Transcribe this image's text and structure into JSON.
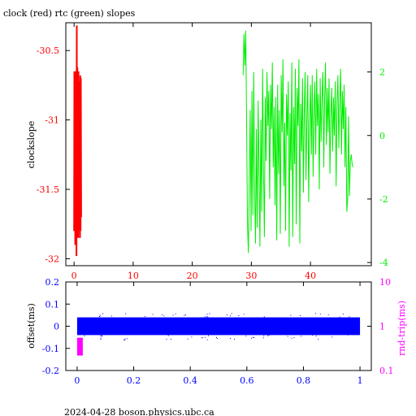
{
  "title": "clock (red) rtc (green) slopes",
  "footer": "2024-04-28  boson.physics.ubc.ca",
  "colors": {
    "clock": "#ff0000",
    "rtc": "#00ee00",
    "offset": "#0000ff",
    "rndtrip": "#ff00ff",
    "axis": "#000000"
  },
  "chart_data": [
    {
      "type": "line",
      "ylabel": "clockslope",
      "left_ticks": [
        "-30.5",
        "-31",
        "-31.5",
        "-32"
      ],
      "left_ylim": [
        -32.05,
        -30.3
      ],
      "right_ticks": [
        "2",
        "0",
        "-2",
        "-4"
      ],
      "right_ylim": [
        -4.1,
        3.55
      ],
      "x_ticks": [
        "0",
        "10",
        "20",
        "30",
        "40"
      ],
      "xlim": [
        -1.4,
        50.3
      ],
      "grid": false,
      "series": [
        {
          "axis": "left",
          "x": [
            0.0,
            0.05,
            0.1,
            0.15,
            0.2,
            0.25,
            0.3,
            0.35,
            0.4,
            0.45,
            0.5,
            0.55,
            0.6,
            0.65,
            0.7,
            0.75,
            0.8,
            0.85,
            0.9,
            0.95,
            1.0,
            1.05,
            1.1,
            1.15,
            1.2
          ],
          "y": [
            -31.8,
            -30.65,
            -31.75,
            -30.7,
            -31.9,
            -30.65,
            -31.7,
            -30.7,
            -31.98,
            -30.32,
            -31.85,
            -30.62,
            -31.75,
            -30.7,
            -31.85,
            -30.65,
            -31.7,
            -30.72,
            -31.8,
            -30.75,
            -31.85,
            -30.68,
            -31.8,
            -30.7,
            -31.7
          ]
        },
        {
          "axis": "right",
          "x": [
            28.6,
            28.75,
            28.9,
            29.05,
            29.2,
            29.35,
            29.5,
            29.65,
            29.8,
            29.95,
            30.1,
            30.25,
            30.4,
            30.55,
            30.7,
            30.85,
            31.0,
            31.15,
            31.3,
            31.45,
            31.6,
            31.75,
            31.9,
            32.05,
            32.2,
            32.35,
            32.5,
            32.65,
            32.8,
            32.95,
            33.1,
            33.25,
            33.4,
            33.55,
            33.7,
            33.85,
            34.0,
            34.15,
            34.3,
            34.45,
            34.6,
            34.75,
            34.9,
            35.05,
            35.2,
            35.35,
            35.5,
            35.65,
            35.8,
            35.95,
            36.1,
            36.25,
            36.4,
            36.55,
            36.7,
            36.85,
            37.0,
            37.15,
            37.3,
            37.45,
            37.6,
            37.75,
            37.9,
            38.05,
            38.2,
            38.35,
            38.5,
            38.65,
            38.8,
            38.95,
            39.1,
            39.25,
            39.4,
            39.55,
            39.7,
            39.85,
            40.0,
            40.15,
            40.3,
            40.45,
            40.6,
            40.75,
            40.9,
            41.05,
            41.2,
            41.35,
            41.5,
            41.65,
            41.8,
            41.95,
            42.1,
            42.25,
            42.4,
            42.55,
            42.7,
            42.85,
            43.0,
            43.15,
            43.3,
            43.45,
            43.6,
            43.75,
            43.9,
            44.05,
            44.2,
            44.35,
            44.5,
            44.65,
            44.8,
            44.95,
            45.1,
            45.25,
            45.4,
            45.55,
            45.7,
            45.85,
            46.0,
            46.15,
            46.3,
            46.45,
            46.6,
            46.75,
            46.9,
            47.05,
            47.2
          ],
          "y": [
            1.9,
            3.2,
            2.2,
            3.3,
            0.4,
            -2.8,
            -3.7,
            -1.5,
            0.8,
            -3.0,
            1.4,
            -2.5,
            2.0,
            -1.8,
            -3.4,
            0.2,
            -2.9,
            1.1,
            -1.2,
            -3.5,
            0.5,
            -2.4,
            2.1,
            -1.0,
            -3.2,
            1.2,
            -0.8,
            2.0,
            0.3,
            1.4,
            -2.0,
            1.6,
            0.2,
            2.3,
            -1.0,
            0.9,
            -2.2,
            1.2,
            -3.3,
            1.6,
            -1.2,
            0.8,
            -3.1,
            1.9,
            0.1,
            2.4,
            -1.6,
            0.4,
            -3.0,
            1.3,
            0.0,
            1.7,
            -3.5,
            0.7,
            -1.1,
            2.3,
            -3.2,
            0.9,
            -0.9,
            2.1,
            -2.8,
            1.5,
            0.3,
            2.4,
            -3.4,
            1.0,
            -0.5,
            1.8,
            -1.8,
            0.8,
            2.0,
            -1.4,
            0.5,
            1.9,
            -2.1,
            0.4,
            1.6,
            -0.6,
            1.9,
            -1.3,
            0.8,
            1.7,
            -0.6,
            2.1,
            0.3,
            1.3,
            -1.7,
            1.8,
            -0.2,
            1.2,
            2.0,
            -1.0,
            1.1,
            2.3,
            -0.3,
            1.5,
            0.1,
            1.8,
            -1.2,
            0.6,
            1.5,
            -0.5,
            1.2,
            0.0,
            1.7,
            -1.6,
            1.0,
            1.9,
            -0.4,
            1.1,
            2.1,
            -0.6,
            1.4,
            0.2,
            1.6,
            -1.0,
            0.9,
            -2.4,
            -2.0,
            0.6,
            -1.9,
            -0.8,
            -0.6,
            -0.9,
            -1.0
          ]
        }
      ]
    },
    {
      "type": "scatter",
      "ylabel": "offset(ms)",
      "y2label": "rnd-trip(ms)",
      "left_ticks": [
        "0.2",
        "0.1",
        "0",
        "-0.1",
        "-0.2"
      ],
      "ylim": [
        -0.2,
        0.2
      ],
      "right_ticks": [
        "10",
        "1",
        "0.1"
      ],
      "y2lim": [
        0.1,
        10
      ],
      "y2scale": "log",
      "x_ticks": [
        "0",
        "0.2",
        "0.4",
        "0.6",
        "0.8",
        "1"
      ],
      "xlim": [
        -0.04,
        1.04
      ],
      "grid": false,
      "offset_band": [
        -0.04,
        0.04
      ],
      "rndtrip_band": [
        0.22,
        0.55
      ]
    }
  ]
}
